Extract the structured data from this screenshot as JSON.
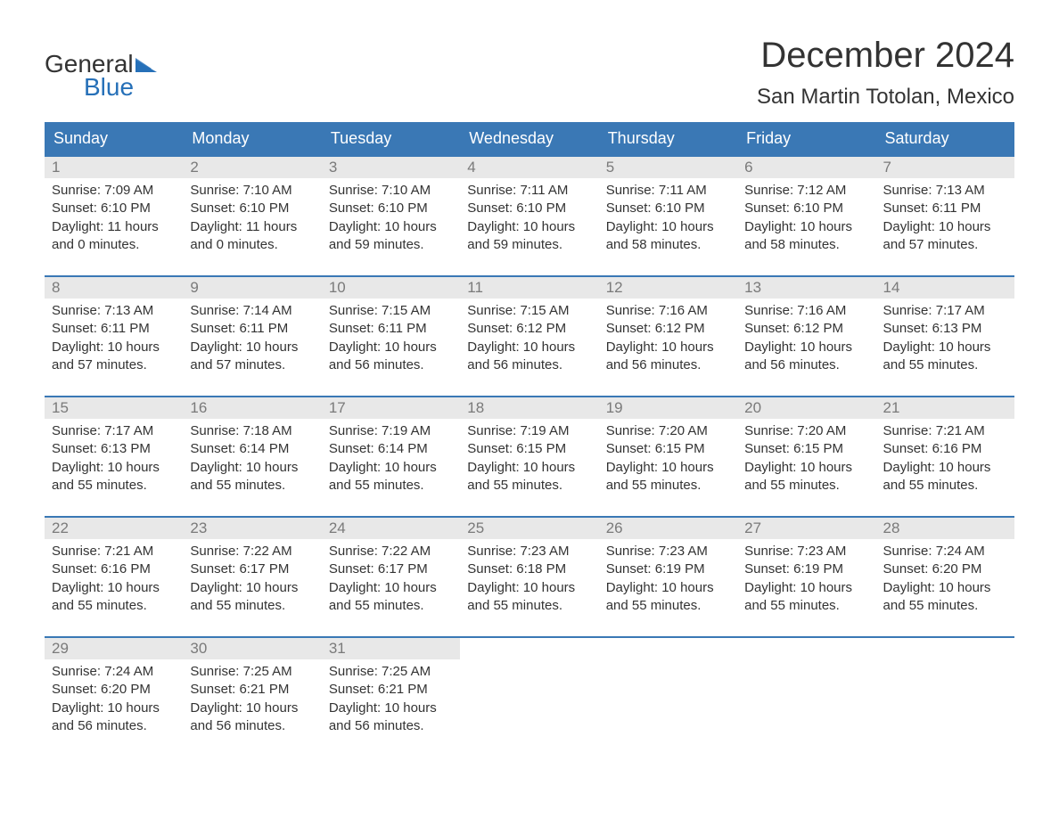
{
  "colors": {
    "brand_blue": "#2670b8",
    "header_blue": "#3a78b5",
    "daynum_bg": "#e8e8e8",
    "daynum_fg": "#7a7a7a",
    "text": "#333333",
    "background": "#ffffff"
  },
  "typography": {
    "title_fontsize_pt": 30,
    "location_fontsize_pt": 18,
    "dayheader_fontsize_pt": 14,
    "body_fontsize_pt": 11
  },
  "logo": {
    "line1": "General",
    "line2": "Blue",
    "flag_color": "#2670b8"
  },
  "title": "December 2024",
  "location": "San Martin Totolan, Mexico",
  "day_names": [
    "Sunday",
    "Monday",
    "Tuesday",
    "Wednesday",
    "Thursday",
    "Friday",
    "Saturday"
  ],
  "weeks": [
    [
      {
        "num": "1",
        "sunrise": "Sunrise: 7:09 AM",
        "sunset": "Sunset: 6:10 PM",
        "daylight1": "Daylight: 11 hours",
        "daylight2": "and 0 minutes."
      },
      {
        "num": "2",
        "sunrise": "Sunrise: 7:10 AM",
        "sunset": "Sunset: 6:10 PM",
        "daylight1": "Daylight: 11 hours",
        "daylight2": "and 0 minutes."
      },
      {
        "num": "3",
        "sunrise": "Sunrise: 7:10 AM",
        "sunset": "Sunset: 6:10 PM",
        "daylight1": "Daylight: 10 hours",
        "daylight2": "and 59 minutes."
      },
      {
        "num": "4",
        "sunrise": "Sunrise: 7:11 AM",
        "sunset": "Sunset: 6:10 PM",
        "daylight1": "Daylight: 10 hours",
        "daylight2": "and 59 minutes."
      },
      {
        "num": "5",
        "sunrise": "Sunrise: 7:11 AM",
        "sunset": "Sunset: 6:10 PM",
        "daylight1": "Daylight: 10 hours",
        "daylight2": "and 58 minutes."
      },
      {
        "num": "6",
        "sunrise": "Sunrise: 7:12 AM",
        "sunset": "Sunset: 6:10 PM",
        "daylight1": "Daylight: 10 hours",
        "daylight2": "and 58 minutes."
      },
      {
        "num": "7",
        "sunrise": "Sunrise: 7:13 AM",
        "sunset": "Sunset: 6:11 PM",
        "daylight1": "Daylight: 10 hours",
        "daylight2": "and 57 minutes."
      }
    ],
    [
      {
        "num": "8",
        "sunrise": "Sunrise: 7:13 AM",
        "sunset": "Sunset: 6:11 PM",
        "daylight1": "Daylight: 10 hours",
        "daylight2": "and 57 minutes."
      },
      {
        "num": "9",
        "sunrise": "Sunrise: 7:14 AM",
        "sunset": "Sunset: 6:11 PM",
        "daylight1": "Daylight: 10 hours",
        "daylight2": "and 57 minutes."
      },
      {
        "num": "10",
        "sunrise": "Sunrise: 7:15 AM",
        "sunset": "Sunset: 6:11 PM",
        "daylight1": "Daylight: 10 hours",
        "daylight2": "and 56 minutes."
      },
      {
        "num": "11",
        "sunrise": "Sunrise: 7:15 AM",
        "sunset": "Sunset: 6:12 PM",
        "daylight1": "Daylight: 10 hours",
        "daylight2": "and 56 minutes."
      },
      {
        "num": "12",
        "sunrise": "Sunrise: 7:16 AM",
        "sunset": "Sunset: 6:12 PM",
        "daylight1": "Daylight: 10 hours",
        "daylight2": "and 56 minutes."
      },
      {
        "num": "13",
        "sunrise": "Sunrise: 7:16 AM",
        "sunset": "Sunset: 6:12 PM",
        "daylight1": "Daylight: 10 hours",
        "daylight2": "and 56 minutes."
      },
      {
        "num": "14",
        "sunrise": "Sunrise: 7:17 AM",
        "sunset": "Sunset: 6:13 PM",
        "daylight1": "Daylight: 10 hours",
        "daylight2": "and 55 minutes."
      }
    ],
    [
      {
        "num": "15",
        "sunrise": "Sunrise: 7:17 AM",
        "sunset": "Sunset: 6:13 PM",
        "daylight1": "Daylight: 10 hours",
        "daylight2": "and 55 minutes."
      },
      {
        "num": "16",
        "sunrise": "Sunrise: 7:18 AM",
        "sunset": "Sunset: 6:14 PM",
        "daylight1": "Daylight: 10 hours",
        "daylight2": "and 55 minutes."
      },
      {
        "num": "17",
        "sunrise": "Sunrise: 7:19 AM",
        "sunset": "Sunset: 6:14 PM",
        "daylight1": "Daylight: 10 hours",
        "daylight2": "and 55 minutes."
      },
      {
        "num": "18",
        "sunrise": "Sunrise: 7:19 AM",
        "sunset": "Sunset: 6:15 PM",
        "daylight1": "Daylight: 10 hours",
        "daylight2": "and 55 minutes."
      },
      {
        "num": "19",
        "sunrise": "Sunrise: 7:20 AM",
        "sunset": "Sunset: 6:15 PM",
        "daylight1": "Daylight: 10 hours",
        "daylight2": "and 55 minutes."
      },
      {
        "num": "20",
        "sunrise": "Sunrise: 7:20 AM",
        "sunset": "Sunset: 6:15 PM",
        "daylight1": "Daylight: 10 hours",
        "daylight2": "and 55 minutes."
      },
      {
        "num": "21",
        "sunrise": "Sunrise: 7:21 AM",
        "sunset": "Sunset: 6:16 PM",
        "daylight1": "Daylight: 10 hours",
        "daylight2": "and 55 minutes."
      }
    ],
    [
      {
        "num": "22",
        "sunrise": "Sunrise: 7:21 AM",
        "sunset": "Sunset: 6:16 PM",
        "daylight1": "Daylight: 10 hours",
        "daylight2": "and 55 minutes."
      },
      {
        "num": "23",
        "sunrise": "Sunrise: 7:22 AM",
        "sunset": "Sunset: 6:17 PM",
        "daylight1": "Daylight: 10 hours",
        "daylight2": "and 55 minutes."
      },
      {
        "num": "24",
        "sunrise": "Sunrise: 7:22 AM",
        "sunset": "Sunset: 6:17 PM",
        "daylight1": "Daylight: 10 hours",
        "daylight2": "and 55 minutes."
      },
      {
        "num": "25",
        "sunrise": "Sunrise: 7:23 AM",
        "sunset": "Sunset: 6:18 PM",
        "daylight1": "Daylight: 10 hours",
        "daylight2": "and 55 minutes."
      },
      {
        "num": "26",
        "sunrise": "Sunrise: 7:23 AM",
        "sunset": "Sunset: 6:19 PM",
        "daylight1": "Daylight: 10 hours",
        "daylight2": "and 55 minutes."
      },
      {
        "num": "27",
        "sunrise": "Sunrise: 7:23 AM",
        "sunset": "Sunset: 6:19 PM",
        "daylight1": "Daylight: 10 hours",
        "daylight2": "and 55 minutes."
      },
      {
        "num": "28",
        "sunrise": "Sunrise: 7:24 AM",
        "sunset": "Sunset: 6:20 PM",
        "daylight1": "Daylight: 10 hours",
        "daylight2": "and 55 minutes."
      }
    ],
    [
      {
        "num": "29",
        "sunrise": "Sunrise: 7:24 AM",
        "sunset": "Sunset: 6:20 PM",
        "daylight1": "Daylight: 10 hours",
        "daylight2": "and 56 minutes."
      },
      {
        "num": "30",
        "sunrise": "Sunrise: 7:25 AM",
        "sunset": "Sunset: 6:21 PM",
        "daylight1": "Daylight: 10 hours",
        "daylight2": "and 56 minutes."
      },
      {
        "num": "31",
        "sunrise": "Sunrise: 7:25 AM",
        "sunset": "Sunset: 6:21 PM",
        "daylight1": "Daylight: 10 hours",
        "daylight2": "and 56 minutes."
      },
      {
        "empty": true
      },
      {
        "empty": true
      },
      {
        "empty": true
      },
      {
        "empty": true
      }
    ]
  ]
}
